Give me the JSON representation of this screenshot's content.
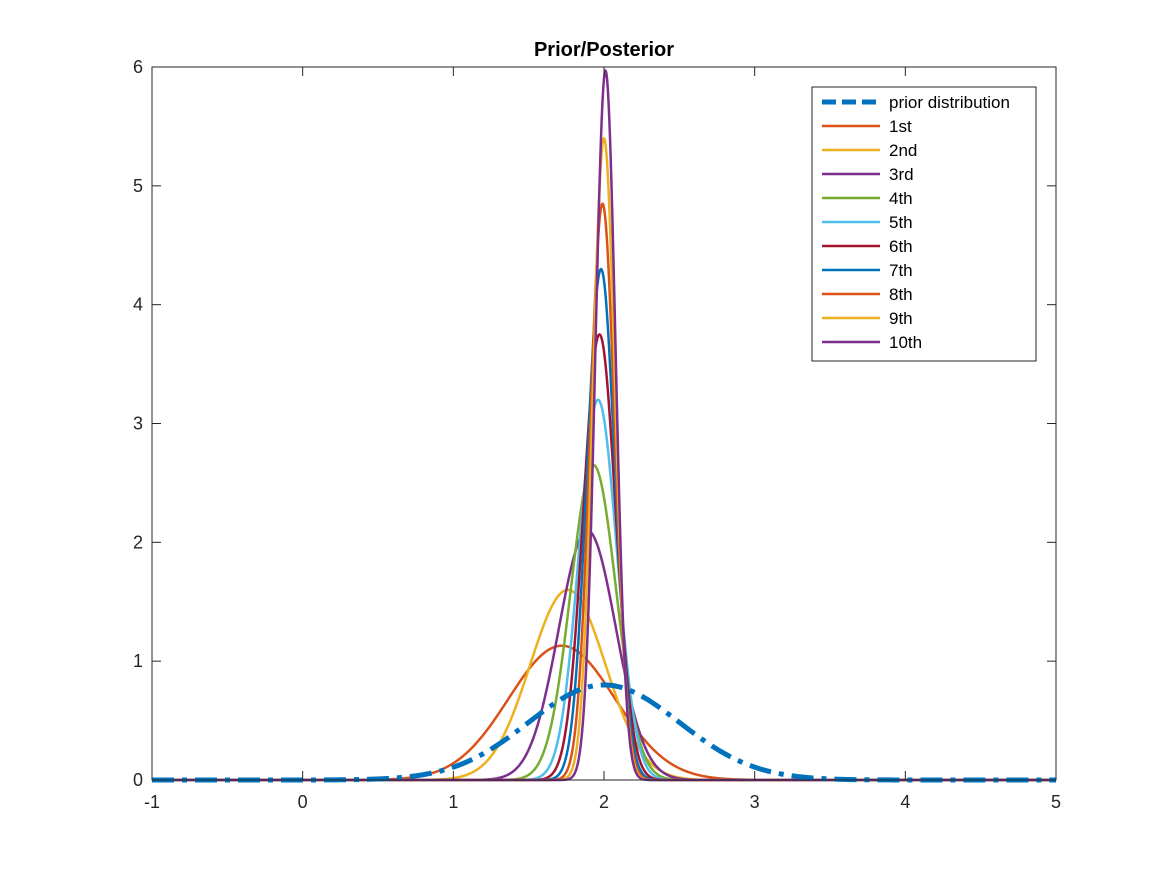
{
  "chart_data": {
    "type": "line",
    "title": "Prior/Posterior",
    "xlabel": "",
    "ylabel": "",
    "xlim": [
      -1,
      5
    ],
    "ylim": [
      0,
      6
    ],
    "xticks": [
      -1,
      0,
      1,
      2,
      3,
      4,
      5
    ],
    "yticks": [
      0,
      1,
      2,
      3,
      4,
      5,
      6
    ],
    "xtick_labels": [
      "-1",
      "0",
      "1",
      "2",
      "3",
      "4",
      "5"
    ],
    "ytick_labels": [
      "0",
      "1",
      "2",
      "3",
      "4",
      "5",
      "6"
    ],
    "grid": false,
    "legend_position": "top-right",
    "series": [
      {
        "name": "prior distribution",
        "distribution": "normal",
        "mean": 2.0,
        "sd": 0.5,
        "peak": 0.8,
        "color": "#0072BD",
        "style": "dashdot"
      },
      {
        "name": "1st",
        "distribution": "normal",
        "mean": 1.72,
        "sd": 0.353,
        "peak": 1.13,
        "color": "#D95319",
        "style": "solid"
      },
      {
        "name": "2nd",
        "distribution": "normal",
        "mean": 1.76,
        "sd": 0.25,
        "peak": 1.6,
        "color": "#EDB120",
        "style": "solid"
      },
      {
        "name": "3rd",
        "distribution": "normal",
        "mean": 1.89,
        "sd": 0.19,
        "peak": 2.1,
        "color": "#7E2F8E",
        "style": "solid"
      },
      {
        "name": "4th",
        "distribution": "normal",
        "mean": 1.93,
        "sd": 0.15,
        "peak": 2.65,
        "color": "#77AC30",
        "style": "solid"
      },
      {
        "name": "5th",
        "distribution": "normal",
        "mean": 1.96,
        "sd": 0.125,
        "peak": 3.2,
        "color": "#4DBEEE",
        "style": "solid"
      },
      {
        "name": "6th",
        "distribution": "normal",
        "mean": 1.97,
        "sd": 0.107,
        "peak": 3.75,
        "color": "#A2142F",
        "style": "solid"
      },
      {
        "name": "7th",
        "distribution": "normal",
        "mean": 1.98,
        "sd": 0.093,
        "peak": 4.3,
        "color": "#0072BD",
        "style": "solid"
      },
      {
        "name": "8th",
        "distribution": "normal",
        "mean": 1.99,
        "sd": 0.082,
        "peak": 4.85,
        "color": "#D95319",
        "style": "solid"
      },
      {
        "name": "9th",
        "distribution": "normal",
        "mean": 2.0,
        "sd": 0.074,
        "peak": 5.4,
        "color": "#EDB120",
        "style": "solid"
      },
      {
        "name": "10th",
        "distribution": "normal",
        "mean": 2.01,
        "sd": 0.067,
        "peak": 5.97,
        "color": "#7E2F8E",
        "style": "solid"
      }
    ]
  }
}
